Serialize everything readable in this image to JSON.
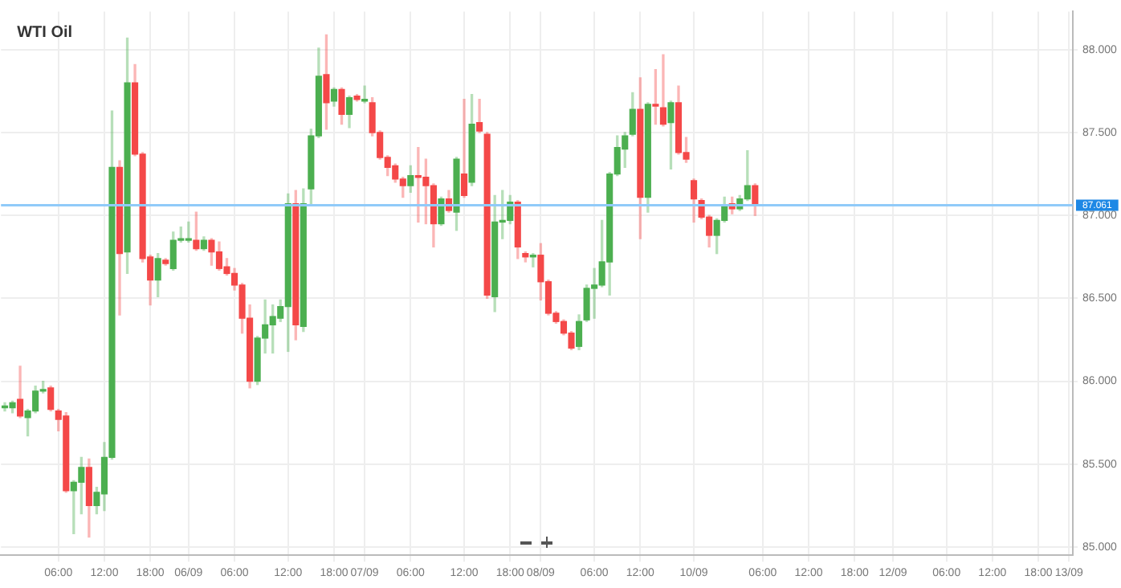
{
  "chart_data": {
    "type": "candlestick",
    "title": "WTI Oil",
    "categories": [
      null,
      null,
      null,
      null,
      null,
      null,
      null,
      "06:00",
      null,
      null,
      null,
      null,
      null,
      "12:00",
      null,
      null,
      null,
      null,
      null,
      "18:00",
      null,
      null,
      null,
      null,
      "06/09",
      null,
      null,
      null,
      null,
      null,
      "06:00",
      null,
      null,
      null,
      null,
      null,
      null,
      "12:00",
      null,
      null,
      null,
      null,
      null,
      "18:00",
      null,
      null,
      null,
      "07/09",
      null,
      null,
      null,
      null,
      null,
      "06:00",
      null,
      null,
      null,
      null,
      null,
      null,
      "12:00",
      null,
      null,
      null,
      null,
      null,
      "18:00",
      null,
      null,
      null,
      "08/09",
      null,
      null,
      null,
      null,
      null,
      null,
      "06:00",
      null,
      null,
      null,
      null,
      null,
      "12:00",
      null,
      null,
      null,
      null,
      null,
      null,
      "10/09",
      null,
      null,
      null,
      null,
      null,
      null,
      null,
      null,
      "06:00",
      null,
      null,
      null,
      null,
      null,
      "12:00",
      null,
      null,
      null,
      null,
      null,
      "18:00",
      null,
      null,
      null,
      null,
      "12/09",
      null,
      null,
      null,
      null,
      null,
      null,
      "06:00",
      null,
      null,
      null,
      null,
      null,
      "12:00",
      null,
      null,
      null,
      null,
      null,
      "18:00",
      null,
      null,
      null,
      "13/09"
    ],
    "ohlc": [
      [
        85.84,
        85.87,
        85.82,
        85.85
      ],
      [
        85.84,
        85.88,
        85.81,
        85.87
      ],
      [
        85.89,
        86.09,
        85.78,
        85.79
      ],
      [
        85.78,
        85.83,
        85.67,
        85.82
      ],
      [
        85.82,
        85.97,
        85.81,
        85.94
      ],
      [
        85.94,
        86.0,
        85.93,
        85.95
      ],
      [
        85.96,
        85.97,
        85.82,
        85.83
      ],
      [
        85.82,
        85.83,
        85.7,
        85.77
      ],
      [
        85.79,
        85.81,
        85.33,
        85.34
      ],
      [
        85.34,
        85.4,
        85.08,
        85.39
      ],
      [
        85.39,
        85.54,
        85.2,
        85.48
      ],
      [
        85.48,
        85.53,
        85.06,
        85.25
      ],
      [
        85.25,
        85.36,
        85.2,
        85.33
      ],
      [
        85.32,
        85.63,
        85.22,
        85.54
      ],
      [
        85.54,
        87.63,
        85.53,
        87.29
      ],
      [
        87.29,
        87.33,
        86.4,
        86.77
      ],
      [
        86.78,
        88.07,
        86.65,
        87.8
      ],
      [
        87.8,
        87.91,
        87.36,
        87.37
      ],
      [
        87.37,
        87.38,
        86.72,
        86.74
      ],
      [
        86.75,
        86.76,
        86.46,
        86.61
      ],
      [
        86.61,
        86.77,
        86.51,
        86.74
      ],
      [
        86.73,
        86.74,
        86.7,
        86.71
      ],
      [
        86.68,
        86.9,
        86.67,
        86.85
      ],
      [
        86.85,
        86.93,
        86.84,
        86.86
      ],
      [
        86.85,
        86.96,
        86.84,
        86.86
      ],
      [
        86.85,
        87.02,
        86.79,
        86.8
      ],
      [
        86.8,
        86.87,
        86.79,
        86.85
      ],
      [
        86.85,
        86.86,
        86.7,
        86.78
      ],
      [
        86.78,
        86.84,
        86.67,
        86.68
      ],
      [
        86.69,
        86.74,
        86.64,
        86.65
      ],
      [
        86.65,
        86.68,
        86.55,
        86.58
      ],
      [
        86.58,
        86.59,
        86.29,
        86.38
      ],
      [
        86.38,
        86.46,
        85.96,
        86.0
      ],
      [
        86.0,
        86.27,
        85.98,
        86.26
      ],
      [
        86.26,
        86.49,
        86.17,
        86.34
      ],
      [
        86.34,
        86.46,
        86.17,
        86.39
      ],
      [
        86.38,
        86.49,
        86.36,
        86.45
      ],
      [
        86.45,
        87.13,
        86.18,
        87.07
      ],
      [
        87.07,
        87.15,
        86.25,
        86.34
      ],
      [
        86.33,
        87.16,
        86.3,
        87.07
      ],
      [
        87.16,
        87.52,
        87.07,
        87.48
      ],
      [
        87.48,
        88.01,
        87.47,
        87.84
      ],
      [
        87.85,
        88.09,
        87.52,
        87.68
      ],
      [
        87.69,
        87.77,
        87.66,
        87.76
      ],
      [
        87.76,
        87.77,
        87.55,
        87.61
      ],
      [
        87.61,
        87.72,
        87.53,
        87.71
      ],
      [
        87.72,
        87.73,
        87.69,
        87.7
      ],
      [
        87.69,
        87.78,
        87.68,
        87.7
      ],
      [
        87.68,
        87.71,
        87.48,
        87.5
      ],
      [
        87.5,
        87.51,
        87.34,
        87.35
      ],
      [
        87.35,
        87.36,
        87.24,
        87.29
      ],
      [
        87.3,
        87.31,
        87.2,
        87.22
      ],
      [
        87.22,
        87.23,
        87.11,
        87.18
      ],
      [
        87.18,
        87.3,
        87.14,
        87.24
      ],
      [
        87.24,
        87.41,
        86.96,
        87.23
      ],
      [
        87.23,
        87.34,
        86.95,
        87.18
      ],
      [
        87.18,
        87.19,
        86.81,
        86.95
      ],
      [
        86.95,
        87.11,
        86.94,
        87.1
      ],
      [
        87.1,
        87.15,
        87.02,
        87.03
      ],
      [
        87.02,
        87.35,
        86.91,
        87.34
      ],
      [
        87.25,
        87.7,
        87.11,
        87.12
      ],
      [
        87.2,
        87.73,
        87.18,
        87.55
      ],
      [
        87.56,
        87.7,
        87.5,
        87.51
      ],
      [
        87.49,
        87.5,
        86.5,
        86.52
      ],
      [
        86.51,
        87.12,
        86.42,
        86.96
      ],
      [
        86.96,
        87.15,
        86.86,
        86.97
      ],
      [
        86.97,
        87.12,
        86.95,
        87.08
      ],
      [
        87.08,
        87.09,
        86.74,
        86.81
      ],
      [
        86.77,
        86.78,
        86.72,
        86.75
      ],
      [
        86.75,
        86.77,
        86.69,
        86.76
      ],
      [
        86.76,
        86.83,
        86.49,
        86.6
      ],
      [
        86.6,
        86.61,
        86.4,
        86.41
      ],
      [
        86.41,
        86.42,
        86.35,
        86.36
      ],
      [
        86.36,
        86.37,
        86.28,
        86.29
      ],
      [
        86.29,
        86.3,
        86.19,
        86.2
      ],
      [
        86.21,
        86.4,
        86.19,
        86.36
      ],
      [
        86.37,
        86.58,
        86.36,
        86.56
      ],
      [
        86.56,
        86.68,
        86.38,
        86.58
      ],
      [
        86.58,
        86.97,
        86.57,
        86.72
      ],
      [
        86.72,
        87.26,
        86.52,
        87.25
      ],
      [
        87.25,
        87.48,
        87.24,
        87.41
      ],
      [
        87.4,
        87.5,
        87.29,
        87.48
      ],
      [
        87.49,
        87.74,
        87.48,
        87.64
      ],
      [
        87.64,
        87.83,
        86.86,
        87.11
      ],
      [
        87.11,
        87.68,
        87.02,
        87.67
      ],
      [
        87.67,
        87.88,
        87.55,
        87.66
      ],
      [
        87.65,
        87.97,
        87.54,
        87.55
      ],
      [
        87.56,
        87.69,
        87.28,
        87.68
      ],
      [
        87.68,
        87.78,
        87.37,
        87.38
      ],
      [
        87.38,
        87.47,
        87.32,
        87.34
      ],
      [
        87.21,
        87.22,
        86.96,
        87.1
      ],
      [
        87.09,
        87.1,
        86.98,
        86.99
      ],
      [
        86.99,
        87.0,
        86.81,
        86.88
      ],
      [
        86.88,
        86.98,
        86.77,
        86.97
      ],
      [
        86.97,
        87.11,
        86.96,
        87.06
      ],
      [
        87.07,
        87.11,
        87.01,
        87.04
      ],
      [
        87.04,
        87.12,
        87.03,
        87.1
      ],
      [
        87.1,
        87.39,
        87.09,
        87.18
      ],
      [
        87.18,
        87.19,
        87.0,
        87.06
      ],
      null,
      null,
      null,
      null,
      null,
      null,
      null,
      null,
      null,
      null,
      null,
      null,
      null,
      null,
      null,
      null,
      null,
      null,
      null,
      null,
      null,
      null,
      null,
      null,
      null,
      null,
      null,
      null,
      null,
      null,
      null,
      null,
      null,
      null,
      null,
      null,
      null,
      null,
      null,
      null,
      null
    ],
    "colors": [
      "#4caf50",
      "#4caf50",
      "#f44848",
      "#4caf50",
      "#4caf50",
      "#4caf50",
      "#f44848",
      "#f44848",
      "#f44848",
      "#4caf50",
      "#4caf50",
      "#f44848",
      "#4caf50",
      "#4caf50",
      "#4caf50",
      "#f44848",
      "#4caf50",
      "#f44848",
      "#f44848",
      "#f44848",
      "#4caf50",
      "#f44848",
      "#4caf50",
      "#4caf50",
      "#4caf50",
      "#f44848",
      "#4caf50",
      "#f44848",
      "#f44848",
      "#f44848",
      "#f44848",
      "#f44848",
      "#f44848",
      "#4caf50",
      "#4caf50",
      "#4caf50",
      "#4caf50",
      "#4caf50",
      "#f44848",
      "#4caf50",
      "#4caf50",
      "#4caf50",
      "#f44848",
      "#4caf50",
      "#f44848",
      "#4caf50",
      "#f44848",
      "#4caf50",
      "#f44848",
      "#f44848",
      "#f44848",
      "#f44848",
      "#f44848",
      "#4caf50",
      "#f44848",
      "#f44848",
      "#f44848",
      "#4caf50",
      "#f44848",
      "#4caf50",
      "#f44848",
      "#4caf50",
      "#f44848",
      "#f44848",
      "#4caf50",
      "#4caf50",
      "#4caf50",
      "#f44848",
      "#f44848",
      "#4caf50",
      "#f44848",
      "#f44848",
      "#f44848",
      "#f44848",
      "#f44848",
      "#4caf50",
      "#4caf50",
      "#4caf50",
      "#4caf50",
      "#4caf50",
      "#4caf50",
      "#4caf50",
      "#4caf50",
      "#f44848",
      "#4caf50",
      "#f44848",
      "#f44848",
      "#4caf50",
      "#f44848",
      "#f44848",
      "#f44848",
      "#f44848",
      "#f44848",
      "#4caf50",
      "#4caf50",
      "#f44848",
      "#4caf50",
      "#4caf50",
      "#f44848",
      null,
      null,
      null,
      null,
      null,
      null,
      null,
      null,
      null,
      null,
      null,
      null,
      null,
      null,
      null,
      null,
      null,
      null,
      null,
      null,
      null,
      null,
      null,
      null,
      null,
      null,
      null,
      null,
      null,
      null,
      null,
      null,
      null,
      null,
      null,
      null,
      null,
      null,
      null,
      null,
      null
    ],
    "ylim": [
      84.95,
      88.23
    ],
    "yticks": [
      {
        "value": 85,
        "label": "85.000"
      },
      {
        "value": 85.5,
        "label": "85.500"
      },
      {
        "value": 86,
        "label": "86.000"
      },
      {
        "value": 86.5,
        "label": "86.500"
      },
      {
        "value": 87,
        "label": "87.000"
      },
      {
        "value": 87.5,
        "label": "87.500"
      },
      {
        "value": 88,
        "label": "88.000"
      }
    ],
    "ref_lines": [
      {
        "axis": "y",
        "value": 87.061,
        "label": "87.061",
        "color": "#90caf9"
      }
    ],
    "grid": true,
    "legend": false
  }
}
